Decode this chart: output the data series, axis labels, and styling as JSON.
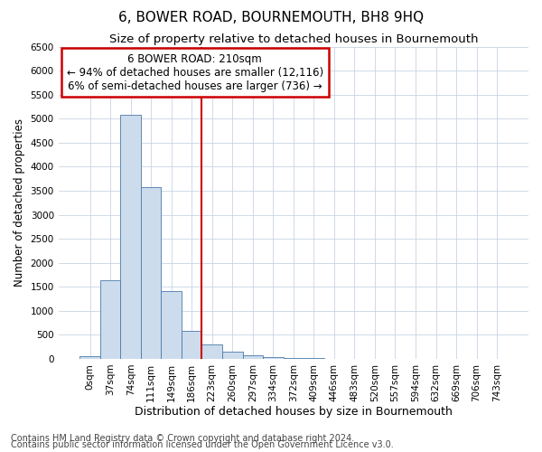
{
  "title": "6, BOWER ROAD, BOURNEMOUTH, BH8 9HQ",
  "subtitle": "Size of property relative to detached houses in Bournemouth",
  "xlabel": "Distribution of detached houses by size in Bournemouth",
  "ylabel": "Number of detached properties",
  "footnote1": "Contains HM Land Registry data © Crown copyright and database right 2024.",
  "footnote2": "Contains public sector information licensed under the Open Government Licence v3.0.",
  "bin_labels": [
    "0sqm",
    "37sqm",
    "74sqm",
    "111sqm",
    "149sqm",
    "186sqm",
    "223sqm",
    "260sqm",
    "297sqm",
    "334sqm",
    "372sqm",
    "409sqm",
    "446sqm",
    "483sqm",
    "520sqm",
    "557sqm",
    "594sqm",
    "632sqm",
    "669sqm",
    "706sqm",
    "743sqm"
  ],
  "bar_values": [
    60,
    1640,
    5080,
    3580,
    1420,
    590,
    295,
    155,
    75,
    30,
    20,
    10,
    5,
    0,
    0,
    0,
    0,
    0,
    0,
    0,
    0
  ],
  "bar_color": "#ccdcec",
  "bar_edge_color": "#4a7aaa",
  "grid_color": "#c8d4e4",
  "annotation_line1": "6 BOWER ROAD: 210sqm",
  "annotation_line2": "← 94% of detached houses are smaller (12,116)",
  "annotation_line3": "6% of semi-detached houses are larger (736) →",
  "annotation_box_color": "#ffffff",
  "annotation_box_edge_color": "#cc0000",
  "red_line_x": 5.5,
  "ylim": [
    0,
    6500
  ],
  "yticks": [
    0,
    500,
    1000,
    1500,
    2000,
    2500,
    3000,
    3500,
    4000,
    4500,
    5000,
    5500,
    6000,
    6500
  ],
  "title_fontsize": 11,
  "subtitle_fontsize": 9.5,
  "xlabel_fontsize": 9,
  "ylabel_fontsize": 8.5,
  "tick_fontsize": 7.5,
  "annotation_fontsize": 8.5,
  "footnote_fontsize": 7,
  "bg_color": "#ffffff"
}
